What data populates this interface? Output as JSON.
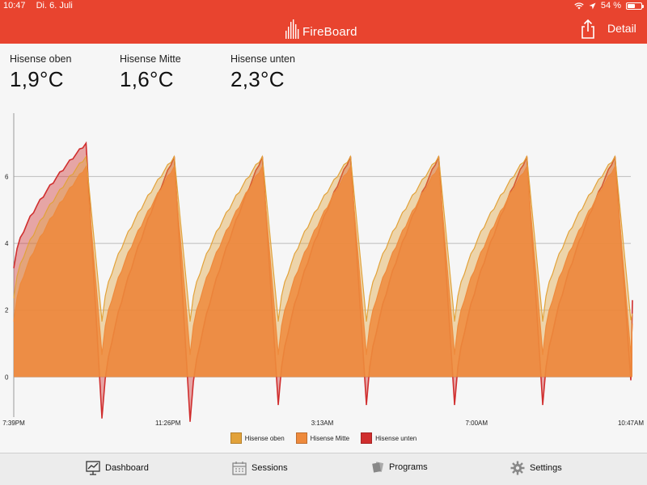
{
  "status_bar": {
    "time": "10:47",
    "date": "Di. 6. Juli",
    "battery": "54 %",
    "battery_level": 0.54
  },
  "header": {
    "logo_text": "FireBoard",
    "detail_label": "Detail"
  },
  "probes": [
    {
      "name": "Hisense oben",
      "temp": "1,9°C"
    },
    {
      "name": "Hisense Mitte",
      "temp": "1,6°C"
    },
    {
      "name": "Hisense unten",
      "temp": "2,3°C"
    }
  ],
  "colors": {
    "accent": "#e8442f",
    "oben": "#e2a23a",
    "mitte": "#ee8a3c",
    "unten": "#d02e2e"
  },
  "chart_data": {
    "type": "area",
    "x_tick_labels": [
      "7:39PM",
      "11:26PM",
      "3:13AM",
      "7:00AM",
      "10:47AM"
    ],
    "y_ticks": [
      0,
      2,
      4,
      6
    ],
    "ylim": [
      -1.2,
      7.8
    ],
    "grid": true,
    "legend_position": "bottom",
    "legend": [
      "Hisense oben",
      "Hisense Mitte",
      "Hisense unten"
    ],
    "cycle_count": 7,
    "series": [
      {
        "name": "Hisense oben",
        "values": [
          2.4,
          6.6,
          1.7,
          6.6,
          1.7,
          6.6,
          1.7,
          6.6,
          1.7,
          6.6,
          1.7,
          6.6,
          1.7,
          6.6,
          1.7,
          1.9
        ]
      },
      {
        "name": "Hisense Mitte",
        "values": [
          1.7,
          6.3,
          0.7,
          6.3,
          0.7,
          6.3,
          0.7,
          6.3,
          0.7,
          6.3,
          0.7,
          6.3,
          0.7,
          6.3,
          0.7,
          1.6
        ]
      },
      {
        "name": "Hisense unten",
        "values": [
          3.3,
          7.0,
          -1.2,
          6.6,
          -1.3,
          6.6,
          -0.8,
          6.6,
          -0.8,
          6.6,
          -0.8,
          6.6,
          -0.8,
          6.6,
          -0.1,
          2.3
        ]
      }
    ]
  },
  "tabs": [
    {
      "label": "Dashboard",
      "icon": "dashboard-icon"
    },
    {
      "label": "Sessions",
      "icon": "calendar-icon"
    },
    {
      "label": "Programs",
      "icon": "programs-icon"
    },
    {
      "label": "Settings",
      "icon": "gear-icon"
    }
  ]
}
